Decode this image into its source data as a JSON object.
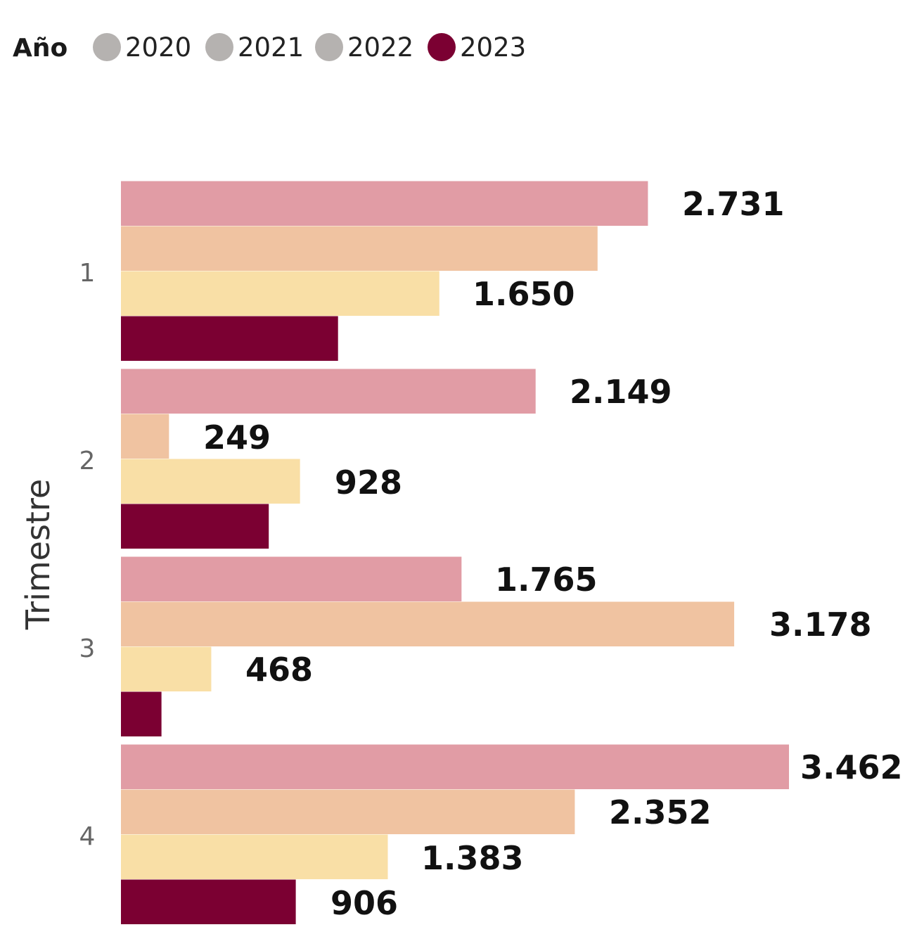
{
  "chart_data": {
    "type": "bar",
    "orientation": "horizontal",
    "legend": {
      "title": "Año",
      "placement": "top-left",
      "entries": [
        {
          "label": "2020",
          "color": "#b5b2b0"
        },
        {
          "label": "2021",
          "color": "#b5b2b0"
        },
        {
          "label": "2022",
          "color": "#b5b2b0"
        },
        {
          "label": "2023",
          "color": "#7b0032"
        }
      ]
    },
    "ylabel": "Trimestre",
    "xlabel": "",
    "categories": [
      "1",
      "2",
      "3",
      "4"
    ],
    "series": [
      {
        "name": "2020",
        "color": "#e19ca5",
        "values": [
          2731,
          2149,
          1765,
          3462
        ],
        "labels": [
          "2.731",
          "2.149",
          "1.765",
          "3.462"
        ]
      },
      {
        "name": "2021",
        "color": "#f0c3a1",
        "values": [
          2470,
          249,
          3178,
          2352
        ],
        "labels": [
          "",
          "249",
          "3.178",
          "2.352"
        ]
      },
      {
        "name": "2022",
        "color": "#f9dfa6",
        "values": [
          1650,
          928,
          468,
          1383
        ],
        "labels": [
          "1.650",
          "928",
          "468",
          "1.383"
        ]
      },
      {
        "name": "2023",
        "color": "#7b0032",
        "values": [
          1125,
          766,
          210,
          906
        ],
        "labels": [
          "",
          "",
          "",
          "906"
        ]
      }
    ],
    "xlim": [
      0,
      3500
    ],
    "grid": false
  }
}
